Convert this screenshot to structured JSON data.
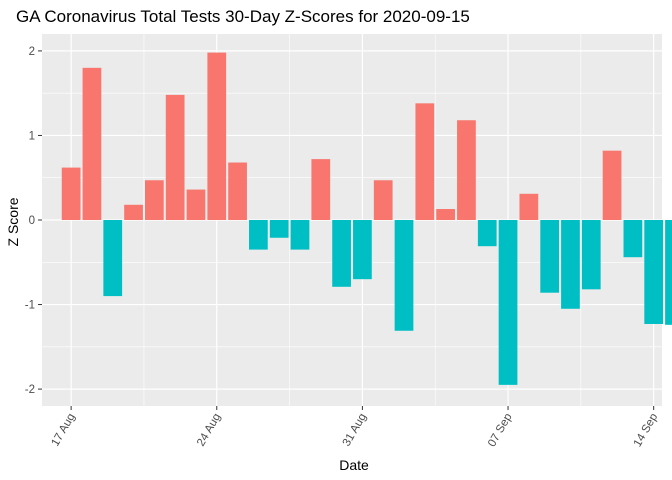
{
  "chart_data": {
    "type": "bar",
    "title": "GA Coronavirus Total Tests 30-Day Z-Scores for 2020-09-15",
    "xlabel": "Date",
    "ylabel": "Z Score",
    "x_start": "2020-08-16",
    "x": [
      "2020-08-17",
      "2020-08-18",
      "2020-08-19",
      "2020-08-20",
      "2020-08-21",
      "2020-08-22",
      "2020-08-23",
      "2020-08-24",
      "2020-08-25",
      "2020-08-26",
      "2020-08-27",
      "2020-08-28",
      "2020-08-29",
      "2020-08-30",
      "2020-08-31",
      "2020-09-01",
      "2020-09-02",
      "2020-09-03",
      "2020-09-04",
      "2020-09-05",
      "2020-09-06",
      "2020-09-07",
      "2020-09-08",
      "2020-09-09",
      "2020-09-10",
      "2020-09-11",
      "2020-09-12",
      "2020-09-13",
      "2020-09-14",
      "2020-09-15"
    ],
    "values": [
      0.62,
      1.8,
      -0.9,
      0.18,
      0.47,
      1.48,
      0.36,
      1.98,
      0.68,
      -0.35,
      -0.21,
      -0.35,
      0.72,
      -0.79,
      -0.7,
      0.47,
      -1.31,
      1.38,
      0.13,
      1.18,
      -0.31,
      -1.95,
      0.31,
      -0.86,
      -1.05,
      -0.82,
      0.82,
      -0.44,
      -1.23,
      -1.24
    ],
    "x_ticks": [
      {
        "date": "2020-08-17",
        "label": "17 Aug"
      },
      {
        "date": "2020-08-24",
        "label": "24 Aug"
      },
      {
        "date": "2020-08-31",
        "label": "31 Aug"
      },
      {
        "date": "2020-09-07",
        "label": "07 Sep"
      },
      {
        "date": "2020-09-14",
        "label": "14 Sep"
      }
    ],
    "y_ticks": [
      -2,
      -1,
      0,
      1,
      2
    ],
    "ylim": [
      -2.2,
      2.2
    ],
    "grid": true,
    "colors": {
      "positive": "#F8766D",
      "negative": "#00BFC4",
      "panel": "#EBEBEB",
      "grid": "#FFFFFF"
    }
  }
}
